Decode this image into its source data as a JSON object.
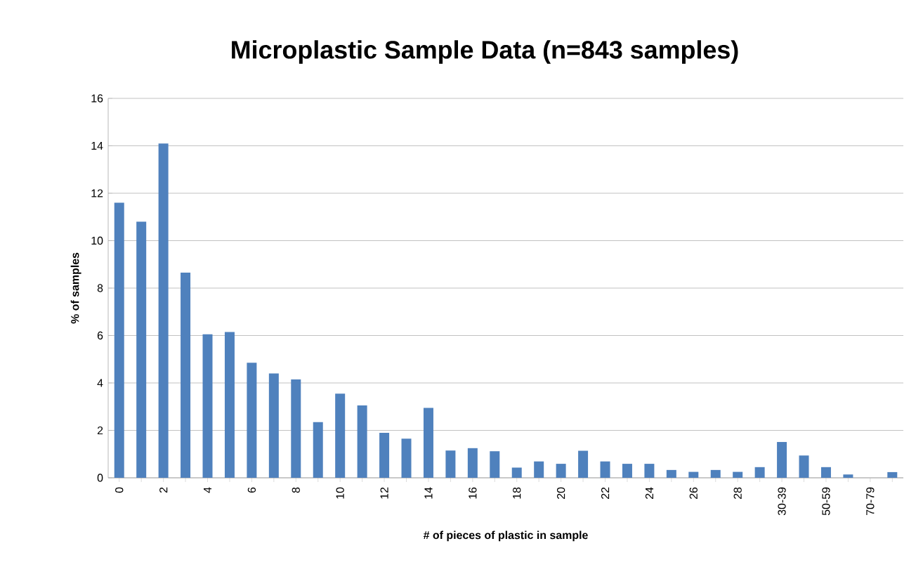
{
  "chart_data": {
    "type": "bar",
    "title": "Microplastic Sample Data (n=843 samples)",
    "xlabel": "# of pieces of plastic in sample",
    "ylabel": "% of samples",
    "categories": [
      "0",
      null,
      "2",
      null,
      "4",
      null,
      "6",
      null,
      "8",
      null,
      "10",
      null,
      "12",
      null,
      "14",
      null,
      "16",
      null,
      "18",
      null,
      "20",
      null,
      "22",
      null,
      "24",
      null,
      "26",
      null,
      "28",
      null,
      "30-39",
      null,
      "50-59",
      null,
      "70-79",
      null
    ],
    "values": [
      11.6,
      10.8,
      14.1,
      8.65,
      6.05,
      6.15,
      4.85,
      4.4,
      4.15,
      2.35,
      3.55,
      3.05,
      1.9,
      1.65,
      2.95,
      1.15,
      1.25,
      1.12,
      0.43,
      0.69,
      0.59,
      1.14,
      0.69,
      0.59,
      0.59,
      0.33,
      0.25,
      0.33,
      0.25,
      0.45,
      1.51,
      0.94,
      0.45,
      0.14,
      0,
      0.24
    ],
    "color": "#4f81bd",
    "ylim": [
      0,
      16
    ],
    "yticks": [
      0,
      2,
      4,
      6,
      8,
      10,
      12,
      14,
      16
    ],
    "grid": "y"
  }
}
